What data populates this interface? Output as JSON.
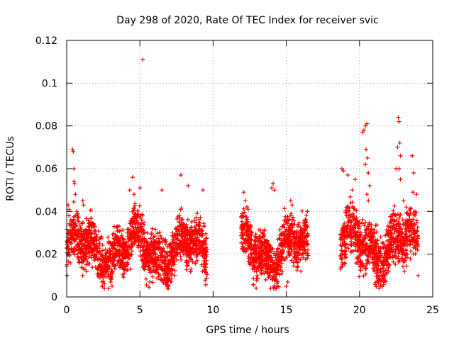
{
  "chart_data": {
    "type": "scatter",
    "title": "Day 298 of 2020, Rate Of TEC Index for receiver svic",
    "xlabel": "GPS time / hours",
    "ylabel": "ROTI / TECUs",
    "xlim": [
      0,
      25
    ],
    "ylim": [
      0,
      0.12
    ],
    "x_ticks": [
      "0",
      "5",
      "10",
      "15",
      "20",
      "25"
    ],
    "y_ticks": [
      "0",
      "0.02",
      "0.04",
      "0.06",
      "0.08",
      "0.1",
      "0.12"
    ],
    "x_tick_values": [
      0,
      5,
      10,
      15,
      20,
      25
    ],
    "y_tick_values": [
      0,
      0.02,
      0.04,
      0.06,
      0.08,
      0.1,
      0.12
    ],
    "grid": true,
    "marker": "+",
    "marker_color": "#ff0000",
    "segments": [
      {
        "start": 0.0,
        "end": 9.6,
        "base": 0.022,
        "spread": 0.012
      },
      {
        "start": 11.9,
        "end": 16.5,
        "base": 0.022,
        "spread": 0.012
      },
      {
        "start": 18.7,
        "end": 24.0,
        "base": 0.024,
        "spread": 0.013
      }
    ],
    "points": [
      [
        0.1,
        0.043
      ],
      [
        0.15,
        0.038
      ],
      [
        0.2,
        0.031
      ],
      [
        0.3,
        0.025
      ],
      [
        0.4,
        0.069
      ],
      [
        0.45,
        0.068
      ],
      [
        0.5,
        0.06
      ],
      [
        0.5,
        0.054
      ],
      [
        0.55,
        0.053
      ],
      [
        0.6,
        0.048
      ],
      [
        0.7,
        0.04
      ],
      [
        1.1,
        0.045
      ],
      [
        1.15,
        0.043
      ],
      [
        2.0,
        0.02
      ],
      [
        3.0,
        0.007
      ],
      [
        3.1,
        0.005
      ],
      [
        4.3,
        0.05
      ],
      [
        4.5,
        0.056
      ],
      [
        4.6,
        0.048
      ],
      [
        5.0,
        0.051
      ],
      [
        5.2,
        0.111
      ],
      [
        6.5,
        0.05
      ],
      [
        7.8,
        0.057
      ],
      [
        8.3,
        0.052
      ],
      [
        9.3,
        0.05
      ],
      [
        12.1,
        0.049
      ],
      [
        12.2,
        0.045
      ],
      [
        12.4,
        0.041
      ],
      [
        13.0,
        0.01
      ],
      [
        13.6,
        0.008
      ],
      [
        14.0,
        0.051
      ],
      [
        14.1,
        0.053
      ],
      [
        14.2,
        0.05
      ],
      [
        15.0,
        0.005
      ],
      [
        15.1,
        0.007
      ],
      [
        15.3,
        0.045
      ],
      [
        15.4,
        0.043
      ],
      [
        16.2,
        0.035
      ],
      [
        16.4,
        0.033
      ],
      [
        16.0,
        0.012
      ],
      [
        18.8,
        0.06
      ],
      [
        18.9,
        0.059
      ],
      [
        19.2,
        0.057
      ],
      [
        19.5,
        0.05
      ],
      [
        19.7,
        0.055
      ],
      [
        20.2,
        0.077
      ],
      [
        20.3,
        0.078
      ],
      [
        20.4,
        0.08
      ],
      [
        20.5,
        0.081
      ],
      [
        20.45,
        0.069
      ],
      [
        20.55,
        0.065
      ],
      [
        20.6,
        0.058
      ],
      [
        20.7,
        0.052
      ],
      [
        20.4,
        0.062
      ],
      [
        20.5,
        0.048
      ],
      [
        20.6,
        0.045
      ],
      [
        21.5,
        0.01
      ],
      [
        22.0,
        0.012
      ],
      [
        22.5,
        0.06
      ],
      [
        22.6,
        0.07
      ],
      [
        22.65,
        0.084
      ],
      [
        22.7,
        0.082
      ],
      [
        22.75,
        0.072
      ],
      [
        22.8,
        0.066
      ],
      [
        22.7,
        0.06
      ],
      [
        22.8,
        0.055
      ],
      [
        23.0,
        0.045
      ],
      [
        23.2,
        0.042
      ],
      [
        23.6,
        0.066
      ],
      [
        23.7,
        0.058
      ],
      [
        23.65,
        0.049
      ],
      [
        23.9,
        0.048
      ],
      [
        23.8,
        0.04
      ],
      [
        24.0,
        0.01
      ]
    ]
  }
}
